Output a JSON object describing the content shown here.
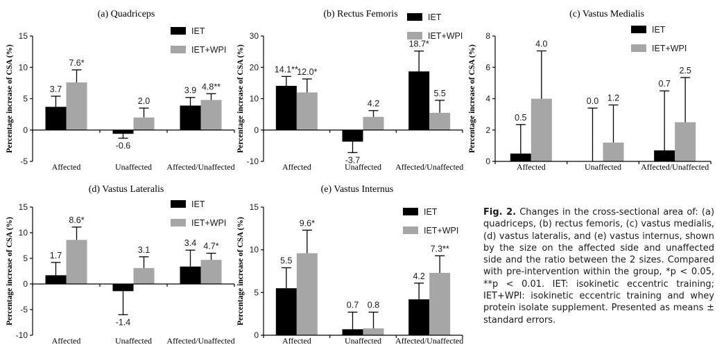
{
  "chart_data": [
    {
      "type": "bar",
      "title": "(a) Quadriceps",
      "ylabel": "Percentage increase of CSA (%)",
      "categories": [
        "Affected",
        "Unaffected",
        "Affected/Unaffected"
      ],
      "ylim": [
        -5,
        15
      ],
      "yticks": [
        -5,
        0,
        5,
        10,
        15
      ],
      "tick_labels": [
        "-5",
        "0",
        "5",
        "10",
        "15"
      ],
      "legend_position": "top-right",
      "series": [
        {
          "name": "IET",
          "values": [
            3.7,
            -0.6,
            3.9
          ],
          "errors": [
            1.7,
            0.7,
            1.3
          ],
          "labels": [
            "3.7",
            "-0.6",
            "3.9"
          ]
        },
        {
          "name": "IET+WPI",
          "values": [
            7.6,
            2.0,
            4.8
          ],
          "errors": [
            2.0,
            1.5,
            1.0
          ],
          "labels": [
            "7.6*",
            "2.0",
            "4.8**"
          ]
        }
      ]
    },
    {
      "type": "bar",
      "title": "(b) Rectus Femoris",
      "ylabel": "Percentage increase of CSA (%)",
      "categories": [
        "Affected",
        "Unaffected",
        "Affected/Unaffected"
      ],
      "ylim": [
        -10,
        30
      ],
      "yticks": [
        -10,
        0,
        10,
        20,
        30
      ],
      "tick_labels": [
        "-10",
        "0",
        "10",
        "20",
        "30"
      ],
      "legend_position": "top-right",
      "series": [
        {
          "name": "IET",
          "values": [
            14.1,
            -3.7,
            18.7
          ],
          "errors": [
            3.0,
            3.5,
            6.5
          ],
          "labels": [
            "14.1**",
            "-3.7",
            "18.7*"
          ]
        },
        {
          "name": "IET+WPI",
          "values": [
            12.0,
            4.2,
            5.5
          ],
          "errors": [
            4.3,
            2.0,
            4.0
          ],
          "labels": [
            "12.0*",
            "4.2",
            "5.5"
          ]
        }
      ]
    },
    {
      "type": "bar",
      "title": "(c) Vastus Medialis",
      "ylabel": "Percentage increase of CSA (%)",
      "categories": [
        "Affected",
        "Unaffected",
        "Affected/Unaffected"
      ],
      "ylim": [
        0,
        8
      ],
      "yticks": [
        0,
        2,
        4,
        6,
        8
      ],
      "tick_labels": [
        "0",
        "2",
        "4",
        "6",
        "8"
      ],
      "legend_position": "top-right",
      "series": [
        {
          "name": "IET",
          "values": [
            0.5,
            0.0,
            0.7
          ],
          "errors": [
            1.85,
            3.4,
            3.8
          ],
          "labels": [
            "0.5",
            "0.0",
            "0.7"
          ]
        },
        {
          "name": "IET+WPI",
          "values": [
            4.0,
            1.2,
            2.5
          ],
          "errors": [
            3.05,
            2.4,
            2.85
          ],
          "labels": [
            "4.0",
            "1.2",
            "2.5"
          ]
        }
      ]
    },
    {
      "type": "bar",
      "title": "(d) Vastus Lateralis",
      "ylabel": "Percentage increase of CSA (%)",
      "categories": [
        "Affected",
        "Unaffected",
        "Affected/Unaffected"
      ],
      "ylim": [
        -10,
        15
      ],
      "yticks": [
        -10,
        -5,
        0,
        5,
        10,
        15
      ],
      "tick_labels": [
        "-10",
        "-5",
        "0",
        "5",
        "10",
        "15"
      ],
      "legend_position": "top-right",
      "series": [
        {
          "name": "IET",
          "values": [
            1.7,
            -1.4,
            3.4
          ],
          "errors": [
            2.5,
            4.6,
            3.2
          ],
          "labels": [
            "1.7",
            "-1.4",
            "3.4"
          ]
        },
        {
          "name": "IET+WPI",
          "values": [
            8.6,
            3.1,
            4.7
          ],
          "errors": [
            2.5,
            2.2,
            1.3
          ],
          "labels": [
            "8.6*",
            "3.1",
            "4.7*"
          ]
        }
      ]
    },
    {
      "type": "bar",
      "title": "(e) Vastus Internus",
      "ylabel": "Percentage increase of CSA (%)",
      "categories": [
        "Affected",
        "Unaffected",
        "Affected/Unaffected"
      ],
      "ylim": [
        0,
        15
      ],
      "yticks": [
        0,
        5,
        10,
        15
      ],
      "tick_labels": [
        "0",
        "5",
        "10",
        "15"
      ],
      "legend_position": "top-right",
      "series": [
        {
          "name": "IET",
          "values": [
            5.5,
            0.7,
            4.2
          ],
          "errors": [
            2.4,
            2.0,
            1.9
          ],
          "labels": [
            "5.5",
            "0.7",
            "4.2"
          ]
        },
        {
          "name": "IET+WPI",
          "values": [
            9.6,
            0.8,
            7.3
          ],
          "errors": [
            2.7,
            1.9,
            2.0
          ],
          "labels": [
            "9.6*",
            "0.8",
            "7.3**"
          ]
        }
      ]
    }
  ],
  "colors": {
    "iet": "#000000",
    "iet_wpi": "#a6a6a6",
    "axis": "#000000"
  },
  "caption": {
    "lead": "Fig. 2.",
    "text": " Changes in the cross-sectional area of: (a) quadriceps, (b) rectus femoris, (c) vastus medialis, (d) vastus lateralis, and (e) vastus internus, shown by the size on the affected side and unaffected side and the ratio between the 2 sizes. Compared with pre-intervention within the group, *p < 0.05, **p < 0.01. IET: isokinetic eccentric training; IET+WPI: isokinetic eccentric training and whey protein isolate supplement. Presented as means ± standard errors."
  }
}
